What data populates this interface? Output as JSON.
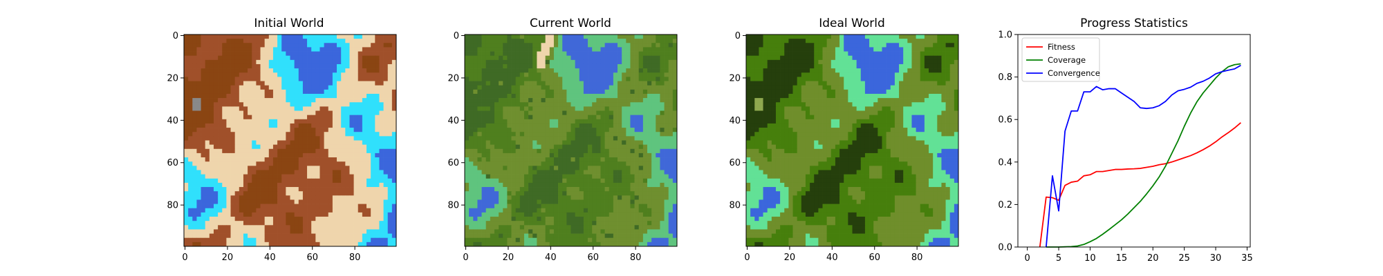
{
  "chart_data": [
    {
      "type": "heatmap",
      "title": "Initial World",
      "xticks": [
        0,
        20,
        40,
        60,
        80
      ],
      "yticks": [
        0,
        20,
        40,
        60,
        80
      ],
      "xlim": [
        0,
        100
      ],
      "ylim": [
        0,
        100
      ],
      "palette": [
        "#3b66dc",
        "#30e0fc",
        "#efd5ac",
        "#a0502a",
        "#8a4512",
        "#898989"
      ]
    },
    {
      "type": "heatmap",
      "title": "Current World",
      "xticks": [
        0,
        20,
        40,
        60,
        80
      ],
      "yticks": [
        0,
        20,
        40,
        60,
        80
      ],
      "xlim": [
        0,
        100
      ],
      "ylim": [
        0,
        100
      ],
      "palette": [
        "#4068d8",
        "#5fc47e",
        "#6f8f2f",
        "#4f7f1e",
        "#3f6a25",
        "#a0502a",
        "#efd5ac"
      ]
    },
    {
      "type": "heatmap",
      "title": "Ideal World",
      "xticks": [
        0,
        20,
        40,
        60,
        80
      ],
      "yticks": [
        0,
        20,
        40,
        60,
        80
      ],
      "xlim": [
        0,
        100
      ],
      "ylim": [
        0,
        100
      ],
      "palette": [
        "#3b66dc",
        "#62e196",
        "#6f8e2b",
        "#467f0c",
        "#253f0c",
        "#8fa84f"
      ]
    },
    {
      "type": "line",
      "title": "Progress Statistics",
      "xlim": [
        -1.5,
        35.5
      ],
      "ylim": [
        0,
        1.0
      ],
      "xticks": [
        0,
        5,
        10,
        15,
        20,
        25,
        30,
        35
      ],
      "yticks": [
        0.0,
        0.2,
        0.4,
        0.6,
        0.8,
        1.0
      ],
      "legend_position": "top-left",
      "x": [
        0,
        1,
        2,
        3,
        4,
        5,
        6,
        7,
        8,
        9,
        10,
        11,
        12,
        13,
        14,
        15,
        16,
        17,
        18,
        19,
        20,
        21,
        22,
        23,
        24,
        25,
        26,
        27,
        28,
        29,
        30,
        31,
        32,
        33,
        34
      ],
      "series": [
        {
          "name": "Fitness",
          "color": "#ff0000",
          "values": [
            null,
            null,
            0,
            0.235,
            0.232,
            0.22,
            0.29,
            0.305,
            0.31,
            0.335,
            0.34,
            0.355,
            0.355,
            0.36,
            0.365,
            0.365,
            0.367,
            0.368,
            0.37,
            0.375,
            0.38,
            0.387,
            0.392,
            0.4,
            0.41,
            0.42,
            0.43,
            0.443,
            0.458,
            0.475,
            0.495,
            0.518,
            0.538,
            0.56,
            0.585
          ]
        },
        {
          "name": "Coverage",
          "color": "#008000",
          "values": [
            null,
            null,
            null,
            0,
            0,
            0,
            0.001,
            0.002,
            0.005,
            0.012,
            0.025,
            0.04,
            0.06,
            0.082,
            0.105,
            0.128,
            0.155,
            0.185,
            0.215,
            0.25,
            0.288,
            0.33,
            0.38,
            0.44,
            0.5,
            0.568,
            0.63,
            0.683,
            0.725,
            0.76,
            0.795,
            0.825,
            0.848,
            0.858,
            0.862
          ]
        },
        {
          "name": "Convergence",
          "color": "#0000ff",
          "values": [
            null,
            null,
            null,
            0,
            0.335,
            0.17,
            0.545,
            0.64,
            0.64,
            0.73,
            0.73,
            0.755,
            0.74,
            0.745,
            0.745,
            0.725,
            0.705,
            0.685,
            0.655,
            0.652,
            0.655,
            0.665,
            0.685,
            0.715,
            0.735,
            0.742,
            0.752,
            0.77,
            0.78,
            0.795,
            0.815,
            0.825,
            0.832,
            0.838,
            0.855
          ]
        }
      ]
    }
  ]
}
